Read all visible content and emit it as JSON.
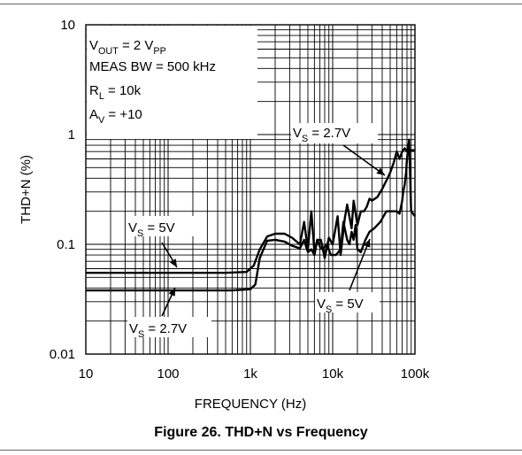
{
  "figure_caption": "Figure 26. THD+N vs Frequency",
  "chart_data": {
    "type": "line",
    "title": "",
    "xlabel": "FREQUENCY (Hz)",
    "ylabel": "THD+N (%)",
    "x_scale": "log",
    "y_scale": "log",
    "xlim": [
      10,
      100000
    ],
    "ylim": [
      0.01,
      10
    ],
    "x_ticks": [
      {
        "value": 10,
        "label": "10"
      },
      {
        "value": 100,
        "label": "100"
      },
      {
        "value": 1000,
        "label": "1k"
      },
      {
        "value": 10000,
        "label": "10k"
      },
      {
        "value": 100000,
        "label": "100k"
      }
    ],
    "y_ticks": [
      {
        "value": 0.01,
        "label": "0.01"
      },
      {
        "value": 0.1,
        "label": "0.1"
      },
      {
        "value": 1,
        "label": "1"
      },
      {
        "value": 10,
        "label": "10"
      }
    ],
    "grid": true,
    "conditions": [
      {
        "main": "V",
        "sub": "OUT",
        "rest": " = 2 V",
        "sub2": "PP"
      },
      {
        "main": "MEAS BW = 500 kHz",
        "sub": "",
        "rest": "",
        "sub2": ""
      },
      {
        "main": "R",
        "sub": "L",
        "rest": " = 10k",
        "sub2": ""
      },
      {
        "main": "A",
        "sub": "V",
        "rest": " = +10",
        "sub2": ""
      }
    ],
    "series": [
      {
        "color": "#000000",
        "x": [
          10,
          500,
          900,
          1100,
          1300,
          1600,
          2000,
          2600,
          3200,
          4000,
          4500,
          5000,
          5500,
          6000,
          6500,
          7200,
          8000,
          9000,
          10000,
          11500,
          12500,
          14000,
          15000,
          17000,
          18000,
          20000,
          22000,
          24000,
          26000,
          28000,
          30000,
          35000,
          40000,
          45000,
          50000,
          55000,
          60000,
          65000,
          70000,
          75000,
          80000,
          90000,
          100000
        ],
        "y": [
          0.055,
          0.055,
          0.056,
          0.064,
          0.09,
          0.118,
          0.125,
          0.125,
          0.115,
          0.1,
          0.16,
          0.09,
          0.2,
          0.085,
          0.11,
          0.11,
          0.075,
          0.115,
          0.1,
          0.18,
          0.08,
          0.17,
          0.23,
          0.14,
          0.25,
          0.15,
          0.2,
          0.2,
          0.22,
          0.26,
          0.25,
          0.27,
          0.32,
          0.38,
          0.45,
          0.55,
          0.7,
          0.6,
          0.7,
          0.75,
          0.7,
          0.72,
          0.72
        ]
      },
      {
        "color": "#000000",
        "x": [
          10,
          600,
          1000,
          1150,
          1300,
          1600,
          2000,
          2600,
          3200,
          4000,
          4500,
          5000,
          5500,
          6000,
          6500,
          7000,
          7500,
          8500,
          9500,
          11000,
          12500,
          13500,
          15000,
          16000,
          17000,
          18000,
          19000,
          20000,
          22000,
          25000,
          28000,
          32000,
          38000,
          45000,
          52000,
          60000,
          65000,
          70000,
          72000,
          75000,
          78000,
          80000,
          85000,
          90000,
          100000
        ],
        "y": [
          0.038,
          0.038,
          0.039,
          0.043,
          0.075,
          0.108,
          0.11,
          0.106,
          0.097,
          0.092,
          0.11,
          0.085,
          0.09,
          0.08,
          0.11,
          0.095,
          0.09,
          0.1,
          0.08,
          0.08,
          0.09,
          0.16,
          0.11,
          0.1,
          0.13,
          0.11,
          0.15,
          0.09,
          0.085,
          0.11,
          0.13,
          0.14,
          0.16,
          0.2,
          0.2,
          0.2,
          0.19,
          0.25,
          0.3,
          0.35,
          0.45,
          0.6,
          0.9,
          0.2,
          0.18
        ]
      }
    ],
    "annotations": [
      {
        "main": "V",
        "sub": "S",
        "rest": " = 2.7V"
      },
      {
        "main": "V",
        "sub": "S",
        "rest": " = 5V"
      },
      {
        "main": "V",
        "sub": "S",
        "rest": " = 5V"
      },
      {
        "main": "V",
        "sub": "S",
        "rest": " = 2.7V"
      }
    ]
  }
}
